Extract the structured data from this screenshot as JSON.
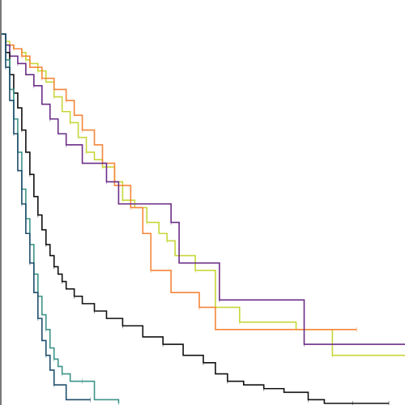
{
  "chart_data": {
    "type": "line",
    "subtype": "kaplan-meier-survival",
    "title": "",
    "xlabel": "",
    "ylabel": "",
    "xlim": [
      0,
      100
    ],
    "ylim": [
      0,
      1
    ],
    "grid": false,
    "legend": "none",
    "series": [
      {
        "color": "#c7d63a",
        "x": [
          0,
          1,
          2,
          3,
          5,
          6,
          7,
          9,
          11,
          13,
          15,
          17,
          19,
          21,
          23,
          25,
          28,
          30,
          33,
          36,
          39,
          41,
          43,
          48,
          53,
          59,
          73,
          82,
          100
        ],
        "y": [
          1.0,
          0.98,
          0.97,
          0.96,
          0.95,
          0.93,
          0.92,
          0.9,
          0.87,
          0.83,
          0.79,
          0.76,
          0.72,
          0.68,
          0.66,
          0.64,
          0.6,
          0.55,
          0.53,
          0.49,
          0.46,
          0.44,
          0.4,
          0.36,
          0.26,
          0.22,
          0.2,
          0.13,
          0.13
        ]
      },
      {
        "color": "#f4863a",
        "x": [
          0,
          1,
          3,
          5,
          7,
          10,
          13,
          16,
          18,
          20,
          23,
          25,
          28,
          32,
          35,
          37,
          42,
          49,
          53,
          88
        ],
        "y": [
          1.0,
          0.97,
          0.96,
          0.94,
          0.91,
          0.88,
          0.85,
          0.82,
          0.78,
          0.74,
          0.7,
          0.65,
          0.59,
          0.53,
          0.46,
          0.36,
          0.3,
          0.26,
          0.2,
          0.2
        ]
      },
      {
        "color": "#6b2d87",
        "x": [
          0,
          1,
          2,
          4,
          6,
          8,
          10,
          12,
          14,
          16,
          20,
          26,
          29,
          42,
          44,
          54,
          59,
          75,
          100
        ],
        "y": [
          1.0,
          0.97,
          0.94,
          0.92,
          0.89,
          0.86,
          0.81,
          0.77,
          0.73,
          0.7,
          0.65,
          0.6,
          0.54,
          0.49,
          0.38,
          0.28,
          0.28,
          0.16,
          0.16
        ]
      },
      {
        "color": "#111111",
        "x": [
          0,
          1,
          2,
          3,
          4,
          5,
          6,
          7,
          8,
          9,
          10,
          11,
          12,
          13,
          14,
          15,
          16,
          18,
          20,
          23,
          26,
          30,
          35,
          40,
          45,
          50,
          53,
          56,
          60,
          65,
          70,
          76,
          80,
          87,
          92,
          96
        ],
        "y": [
          1.0,
          0.95,
          0.89,
          0.84,
          0.8,
          0.74,
          0.68,
          0.62,
          0.56,
          0.51,
          0.47,
          0.43,
          0.4,
          0.37,
          0.35,
          0.33,
          0.31,
          0.29,
          0.27,
          0.25,
          0.23,
          0.21,
          0.18,
          0.16,
          0.13,
          0.11,
          0.08,
          0.06,
          0.05,
          0.04,
          0.03,
          0.01,
          0.0,
          0.0,
          0.0,
          0.0
        ]
      },
      {
        "color": "#3c9489",
        "x": [
          0,
          1,
          2,
          3,
          4,
          5,
          6,
          7,
          8,
          9,
          10,
          11,
          12,
          13,
          14,
          15,
          17,
          20,
          23,
          29
        ],
        "y": [
          1.0,
          0.93,
          0.85,
          0.77,
          0.68,
          0.58,
          0.5,
          0.43,
          0.35,
          0.29,
          0.24,
          0.2,
          0.15,
          0.12,
          0.1,
          0.08,
          0.06,
          0.06,
          0.01,
          0.0
        ]
      },
      {
        "color": "#1f4f6b",
        "x": [
          0,
          1,
          2,
          3,
          4,
          5,
          6,
          7,
          8,
          9,
          10,
          11,
          12,
          13,
          16,
          22
        ],
        "y": [
          1.0,
          0.91,
          0.82,
          0.73,
          0.63,
          0.54,
          0.46,
          0.38,
          0.3,
          0.23,
          0.17,
          0.13,
          0.09,
          0.05,
          0.01,
          0.01
        ]
      }
    ]
  }
}
